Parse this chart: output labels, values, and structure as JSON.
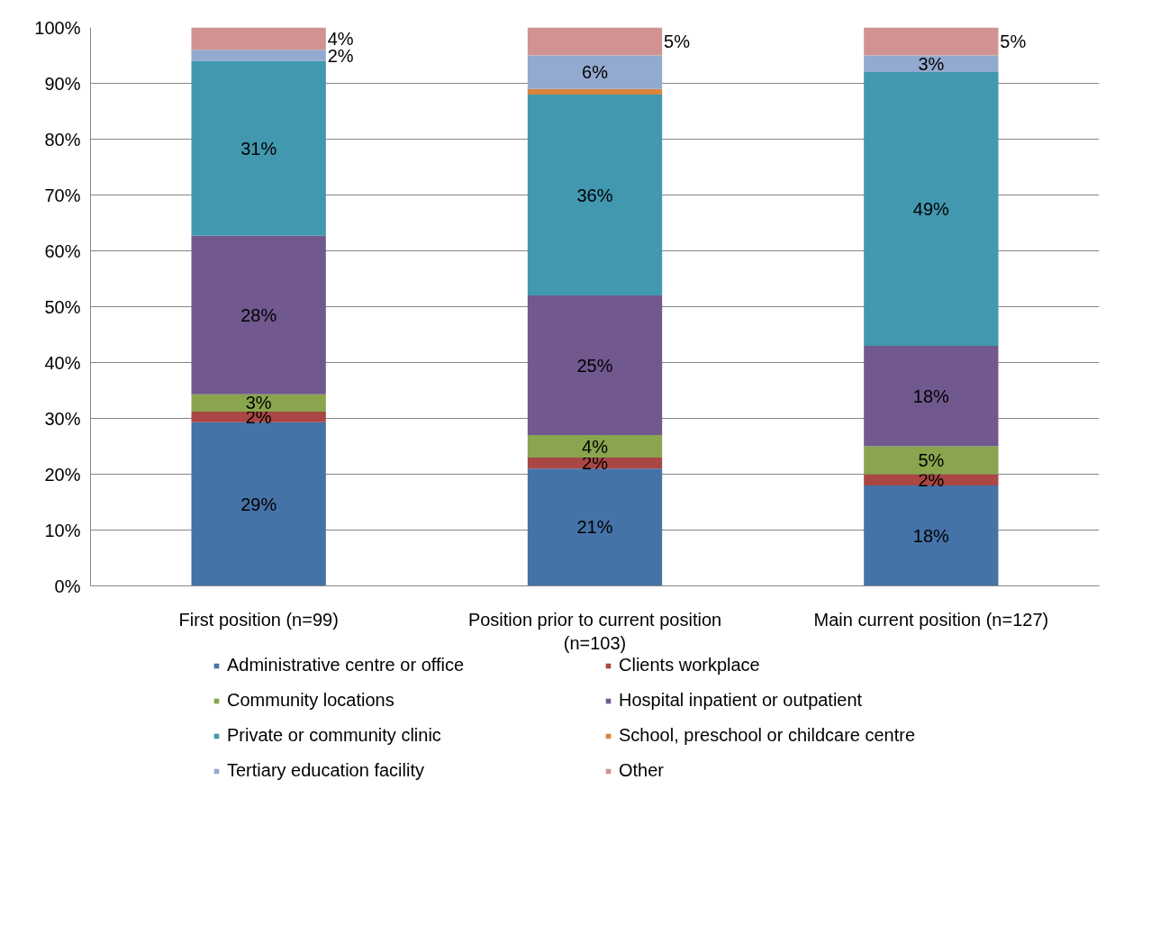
{
  "chart_data": {
    "type": "bar",
    "stacked": true,
    "categories": [
      "First position (n=99)",
      "Position prior to current position (n=103)",
      "Main current position (n=127)"
    ],
    "series": [
      {
        "name": "Administrative centre or office",
        "color": "#4572a7",
        "values": [
          29.3,
          21,
          18
        ],
        "value_labels": [
          "29%",
          "21%",
          "18%"
        ]
      },
      {
        "name": "Clients workplace",
        "color": "#aa4643",
        "values": [
          1.9,
          2,
          2
        ],
        "value_labels": [
          "2%",
          "2%",
          "2%"
        ]
      },
      {
        "name": "Community locations",
        "color": "#89a54e",
        "values": [
          3.1,
          4,
          5
        ],
        "value_labels": [
          "3%",
          "4%",
          "5%"
        ]
      },
      {
        "name": "Hospital inpatient or outpatient",
        "color": "#71588f",
        "values": [
          28.4,
          25,
          18
        ],
        "value_labels": [
          "28%",
          "25%",
          "18%"
        ]
      },
      {
        "name": "Private or community clinic",
        "color": "#4198af",
        "values": [
          31.3,
          36,
          49
        ],
        "value_labels": [
          "31%",
          "36%",
          "49%"
        ]
      },
      {
        "name": "School, preschool or childcare centre",
        "color": "#db843d",
        "values": [
          0,
          1,
          0
        ],
        "value_labels": [
          null,
          null,
          null
        ]
      },
      {
        "name": "Tertiary education facility",
        "color": "#93a9cf",
        "values": [
          2,
          6,
          3
        ],
        "value_labels": [
          "2%",
          "6%",
          "3%"
        ]
      },
      {
        "name": "Other",
        "color": "#d19392",
        "values": [
          4,
          5,
          5
        ],
        "value_labels": [
          "4%",
          "5%",
          "5%"
        ]
      }
    ],
    "ylim": [
      0,
      100
    ],
    "yticks": [
      {
        "value": 0,
        "label": "0%"
      },
      {
        "value": 10,
        "label": "10%"
      },
      {
        "value": 20,
        "label": "20%"
      },
      {
        "value": 30,
        "label": "30%"
      },
      {
        "value": 40,
        "label": "40%"
      },
      {
        "value": 50,
        "label": "50%"
      },
      {
        "value": 60,
        "label": "60%"
      },
      {
        "value": 70,
        "label": "70%"
      },
      {
        "value": 80,
        "label": "80%"
      },
      {
        "value": 90,
        "label": "90%"
      },
      {
        "value": 100,
        "label": "100%"
      }
    ],
    "grid": "y",
    "legend": "bottom"
  }
}
